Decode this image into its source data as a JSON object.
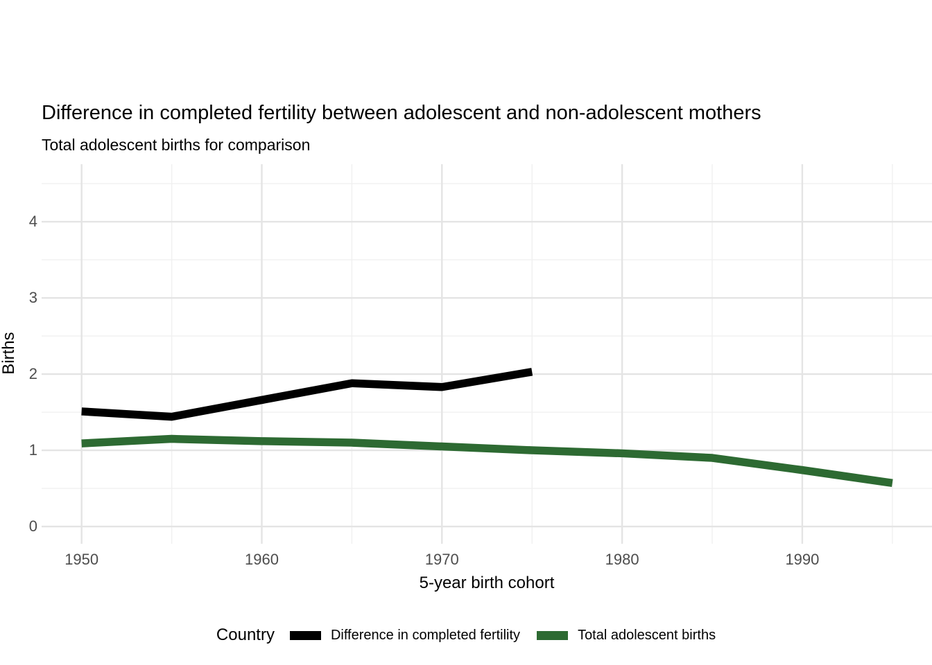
{
  "chart_data": {
    "type": "line",
    "title": "Difference in completed fertility between adolescent and non-adolescent mothers",
    "subtitle": "Total adolescent births for comparison",
    "xlabel": "5-year birth cohort",
    "ylabel": "Births",
    "legend_title": "Country",
    "legend_position": "bottom",
    "grid": true,
    "xlim": [
      1947.78,
      1997.2
    ],
    "ylim": [
      -0.227,
      4.755
    ],
    "x_ticks": [
      1950,
      1960,
      1970,
      1980,
      1990
    ],
    "x_minor_ticks": [
      1955,
      1965,
      1975,
      1985,
      1995
    ],
    "y_ticks": [
      0,
      1,
      2,
      3,
      4
    ],
    "y_minor_ticks": [
      0.5,
      1.5,
      2.5,
      3.5,
      4.5
    ],
    "grid_major_color": "#e4e4e4",
    "grid_minor_color": "#f0f0f0",
    "series": [
      {
        "name": "Difference in completed fertility",
        "color": "#000000",
        "x": [
          1950,
          1955,
          1960,
          1965,
          1970,
          1975
        ],
        "values": [
          1.51,
          1.44,
          1.66,
          1.88,
          1.83,
          2.03
        ]
      },
      {
        "name": "Total adolescent births",
        "color": "#2d6a32",
        "x": [
          1950,
          1955,
          1960,
          1965,
          1970,
          1975,
          1980,
          1985,
          1990,
          1995
        ],
        "values": [
          1.09,
          1.15,
          1.12,
          1.1,
          1.05,
          1.0,
          0.96,
          0.9,
          0.74,
          0.57
        ]
      }
    ]
  }
}
